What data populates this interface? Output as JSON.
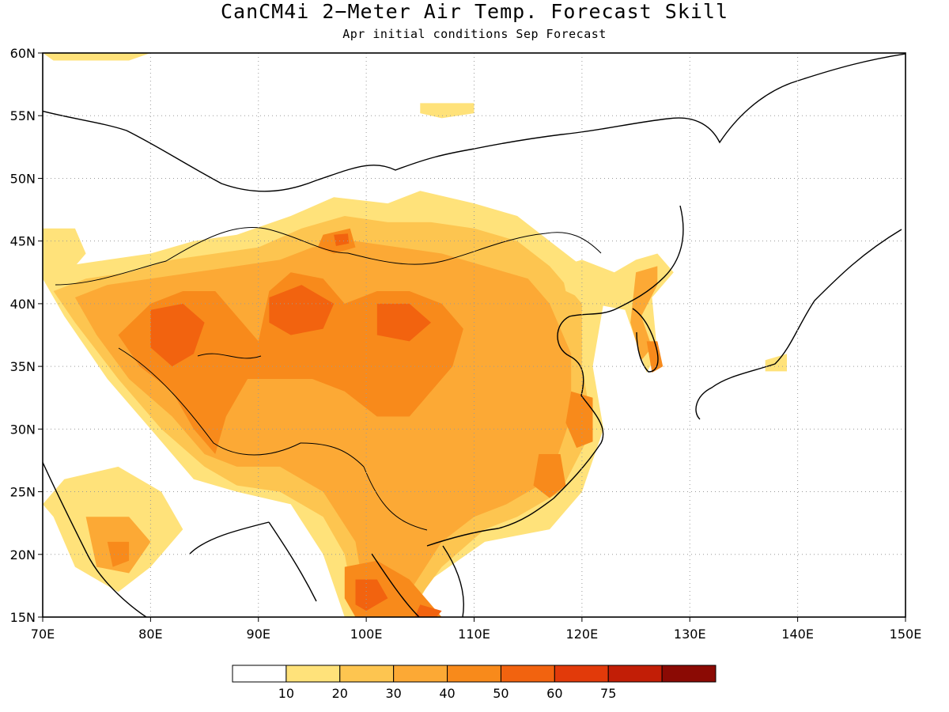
{
  "title": "CanCM4i 2−Meter Air Temp. Forecast Skill",
  "subtitle": "Apr initial conditions  Sep Forecast",
  "map": {
    "lon_range": [
      70,
      150
    ],
    "lat_range": [
      15,
      60
    ],
    "lon_ticks": [
      "70E",
      "80E",
      "90E",
      "100E",
      "110E",
      "120E",
      "130E",
      "140E",
      "150E"
    ],
    "lat_ticks": [
      "60N",
      "55N",
      "50N",
      "45N",
      "40N",
      "35N",
      "30N",
      "25N",
      "20N",
      "15N"
    ],
    "grid": "dotted"
  },
  "colorbar": {
    "colors": [
      "#ffffff",
      "#ffe27a",
      "#fdc550",
      "#fca935",
      "#f88a1b",
      "#f2630f",
      "#e23a0a",
      "#c21e06",
      "#8b0a04"
    ],
    "labels": [
      "10",
      "20",
      "30",
      "40",
      "50",
      "60",
      "75"
    ]
  },
  "skill_regions": [
    {
      "level": 1,
      "points": [
        [
          93,
          47
        ],
        [
          97,
          48.5
        ],
        [
          102,
          48
        ],
        [
          105,
          49
        ],
        [
          110,
          48
        ],
        [
          114,
          47
        ],
        [
          117,
          45
        ],
        [
          120,
          43
        ],
        [
          122,
          40
        ],
        [
          121,
          35
        ],
        [
          122,
          30
        ],
        [
          120,
          25
        ],
        [
          117,
          22
        ],
        [
          111,
          21
        ],
        [
          106,
          18
        ],
        [
          104,
          15
        ],
        [
          98,
          15
        ],
        [
          96,
          20
        ],
        [
          93,
          24
        ],
        [
          88,
          25
        ],
        [
          84,
          26
        ],
        [
          80,
          30
        ],
        [
          76,
          34
        ],
        [
          72,
          39
        ],
        [
          70,
          42
        ],
        [
          72,
          43
        ],
        [
          76,
          43.5
        ],
        [
          80,
          44
        ],
        [
          84,
          45
        ],
        [
          88,
          45.5
        ]
      ]
    },
    {
      "level": 2,
      "points": [
        [
          94,
          46
        ],
        [
          98,
          47
        ],
        [
          102,
          46.5
        ],
        [
          106,
          46.5
        ],
        [
          110,
          46
        ],
        [
          114,
          45
        ],
        [
          117,
          43
        ],
        [
          120,
          40
        ],
        [
          120,
          35
        ],
        [
          121,
          30
        ],
        [
          118,
          25
        ],
        [
          114,
          23
        ],
        [
          111,
          22
        ],
        [
          107,
          19
        ],
        [
          104,
          15.5
        ],
        [
          99,
          15.5
        ],
        [
          98,
          20
        ],
        [
          96,
          23
        ],
        [
          92,
          25
        ],
        [
          88,
          25.5
        ],
        [
          85,
          27
        ],
        [
          81,
          30
        ],
        [
          77,
          34
        ],
        [
          73,
          38.5
        ],
        [
          71,
          41
        ],
        [
          74,
          42
        ],
        [
          78,
          42.5
        ],
        [
          82,
          43.5
        ],
        [
          86,
          44
        ],
        [
          90,
          44.5
        ]
      ]
    },
    {
      "level": 3,
      "points": [
        [
          95,
          44.5
        ],
        [
          99,
          45
        ],
        [
          103,
          44.5
        ],
        [
          107,
          44
        ],
        [
          111,
          43
        ],
        [
          115,
          42
        ],
        [
          117,
          40
        ],
        [
          119,
          36
        ],
        [
          119,
          31
        ],
        [
          117,
          26
        ],
        [
          113,
          24
        ],
        [
          110,
          23
        ],
        [
          107,
          21
        ],
        [
          104,
          17
        ],
        [
          100,
          16
        ],
        [
          99,
          21
        ],
        [
          96,
          25
        ],
        [
          92,
          27
        ],
        [
          88,
          27
        ],
        [
          85,
          28
        ],
        [
          82,
          31
        ],
        [
          78,
          34
        ],
        [
          75,
          37.5
        ],
        [
          73,
          40.5
        ],
        [
          76,
          41.5
        ],
        [
          80,
          42
        ],
        [
          84,
          42.5
        ],
        [
          88,
          43
        ],
        [
          92,
          43.5
        ]
      ]
    },
    {
      "level": 4,
      "points": [
        [
          80,
          40
        ],
        [
          83,
          41
        ],
        [
          86,
          41
        ],
        [
          88,
          39
        ],
        [
          90,
          37
        ],
        [
          91,
          41
        ],
        [
          93,
          42.5
        ],
        [
          96,
          42
        ],
        [
          98,
          40
        ],
        [
          101,
          41
        ],
        [
          104,
          41
        ],
        [
          107,
          40
        ],
        [
          109,
          38
        ],
        [
          108,
          35
        ],
        [
          106,
          33
        ],
        [
          104,
          31
        ],
        [
          101,
          31
        ],
        [
          98,
          33
        ],
        [
          95,
          34
        ],
        [
          92,
          34
        ],
        [
          89,
          34
        ],
        [
          87,
          31
        ],
        [
          86,
          28
        ],
        [
          84,
          30
        ],
        [
          82,
          33
        ],
        [
          79,
          35
        ],
        [
          77,
          37.5
        ]
      ]
    },
    {
      "level": 5,
      "points": [
        [
          80,
          39.5
        ],
        [
          83,
          40
        ],
        [
          85,
          38.5
        ],
        [
          84,
          36
        ],
        [
          82,
          35
        ],
        [
          80,
          36.5
        ]
      ]
    },
    {
      "level": 5,
      "points": [
        [
          91,
          40.5
        ],
        [
          94,
          41.5
        ],
        [
          97,
          40
        ],
        [
          96,
          38
        ],
        [
          93,
          37.5
        ],
        [
          91,
          38.5
        ]
      ]
    },
    {
      "level": 5,
      "points": [
        [
          101,
          40
        ],
        [
          104,
          40
        ],
        [
          106,
          38.5
        ],
        [
          104,
          37
        ],
        [
          101,
          37.5
        ]
      ]
    },
    {
      "level": 4,
      "points": [
        [
          96,
          45.5
        ],
        [
          98.5,
          46
        ],
        [
          99,
          44.5
        ],
        [
          97,
          44
        ],
        [
          95.5,
          44.5
        ]
      ]
    },
    {
      "level": 5,
      "points": [
        [
          97,
          45.5
        ],
        [
          98.3,
          45.6
        ],
        [
          98.4,
          44.8
        ],
        [
          97.2,
          44.6
        ]
      ]
    },
    {
      "level": 4,
      "points": [
        [
          98,
          19
        ],
        [
          101,
          19.5
        ],
        [
          104,
          18
        ],
        [
          106,
          16
        ],
        [
          107,
          15
        ],
        [
          99,
          15
        ],
        [
          98,
          16.5
        ]
      ]
    },
    {
      "level": 5,
      "points": [
        [
          99,
          18
        ],
        [
          101,
          18
        ],
        [
          102,
          16.5
        ],
        [
          100,
          15.5
        ],
        [
          99,
          16
        ]
      ]
    },
    {
      "level": 5,
      "points": [
        [
          105,
          16
        ],
        [
          107,
          15.5
        ],
        [
          106.5,
          15
        ],
        [
          104.5,
          15
        ]
      ]
    },
    {
      "level": 4,
      "points": [
        [
          119,
          33
        ],
        [
          121,
          32.5
        ],
        [
          121,
          29
        ],
        [
          119.5,
          28.5
        ],
        [
          118.5,
          30.5
        ]
      ]
    },
    {
      "level": 4,
      "points": [
        [
          116,
          28
        ],
        [
          118,
          28
        ],
        [
          118.5,
          25.5
        ],
        [
          117,
          24.5
        ],
        [
          115.5,
          25.5
        ]
      ]
    },
    {
      "level": 1,
      "points": [
        [
          118,
          43
        ],
        [
          120,
          43.5
        ],
        [
          123,
          42.5
        ],
        [
          125,
          43.5
        ],
        [
          127,
          44
        ],
        [
          128.5,
          42.5
        ],
        [
          126.5,
          40.5
        ],
        [
          127,
          36
        ],
        [
          126,
          34.5
        ],
        [
          125,
          37
        ],
        [
          124,
          39.5
        ],
        [
          121,
          40
        ],
        [
          118.5,
          41
        ]
      ]
    },
    {
      "level": 3,
      "points": [
        [
          125,
          42.5
        ],
        [
          127,
          43
        ],
        [
          127,
          41.5
        ],
        [
          125.5,
          39
        ],
        [
          126.5,
          36.5
        ],
        [
          125.5,
          35.5
        ],
        [
          124.5,
          38.5
        ]
      ]
    },
    {
      "level": 4,
      "points": [
        [
          126,
          37
        ],
        [
          127,
          37
        ],
        [
          127.5,
          35
        ],
        [
          126.5,
          34.5
        ]
      ]
    },
    {
      "level": 1,
      "points": [
        [
          72,
          26
        ],
        [
          77,
          27
        ],
        [
          81,
          25
        ],
        [
          83,
          22
        ],
        [
          80,
          19
        ],
        [
          77,
          17
        ],
        [
          73,
          19
        ],
        [
          71,
          23
        ],
        [
          70,
          24
        ]
      ]
    },
    {
      "level": 3,
      "points": [
        [
          74,
          23
        ],
        [
          78,
          23
        ],
        [
          80,
          21
        ],
        [
          78,
          18.5
        ],
        [
          75,
          19
        ]
      ]
    },
    {
      "level": 4,
      "points": [
        [
          76,
          21
        ],
        [
          78,
          21
        ],
        [
          78,
          19.5
        ],
        [
          76.5,
          19
        ]
      ]
    },
    {
      "level": 1,
      "points": [
        [
          70,
          46
        ],
        [
          73,
          46
        ],
        [
          74,
          44
        ],
        [
          72,
          42
        ],
        [
          70,
          42
        ]
      ]
    },
    {
      "level": 1,
      "points": [
        [
          70,
          60
        ],
        [
          80,
          60
        ],
        [
          78,
          59.4
        ],
        [
          71,
          59.4
        ]
      ]
    },
    {
      "level": 1,
      "points": [
        [
          105,
          56
        ],
        [
          110,
          56
        ],
        [
          110,
          55.2
        ],
        [
          107,
          54.8
        ],
        [
          105,
          55.2
        ]
      ]
    },
    {
      "level": 1,
      "points": [
        [
          137,
          35.5
        ],
        [
          139,
          36
        ],
        [
          139,
          34.6
        ],
        [
          137,
          34.6
        ]
      ]
    }
  ]
}
